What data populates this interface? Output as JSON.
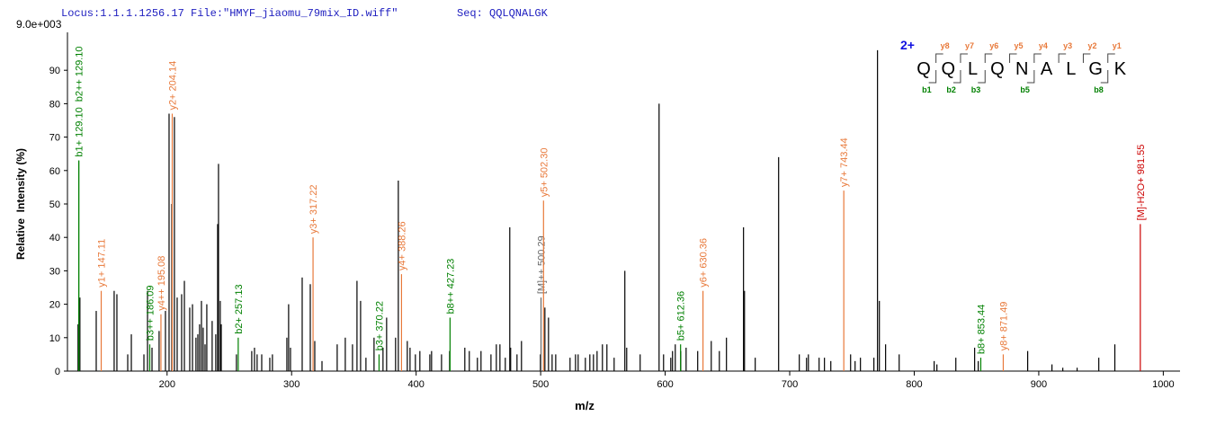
{
  "chart_data": {
    "type": "spectrum",
    "header": "Locus:1.1.1.1256.17 File:\"HMYF_jiaomu_79mix_ID.wiff\"",
    "seq_label": "Seq: QQLQNALGK",
    "scale_label": "9.0e+003",
    "x_label": "m/z",
    "y_label": "Relative  Intensity (%)",
    "xlim": [
      120,
      1012
    ],
    "ylim": [
      0,
      100
    ],
    "xticks": [
      200,
      300,
      400,
      500,
      600,
      700,
      800,
      900,
      1000
    ],
    "yticks": [
      0,
      10,
      20,
      30,
      40,
      50,
      60,
      70,
      80,
      90
    ],
    "series": [
      {
        "name": "peaks",
        "color": "#000000",
        "x": [
          143.1,
          157.5,
          159.7,
          168.4,
          171.3,
          181.4,
          184.3,
          187.9,
          193.6,
          198.7,
          201.6,
          203.8,
          205.9,
          208.1,
          211.7,
          213.9,
          218.2,
          220.4,
          223.2,
          224.7,
          226.1,
          227.6,
          229,
          230.5,
          231.9,
          236.2,
          239.1,
          240.6,
          241.3,
          242.7,
          243.5,
          255.7,
          268,
          270.2,
          272.3,
          276,
          282.5,
          284.6,
          296.2,
          297.6,
          299.1,
          308.5,
          315,
          318.6,
          324.4,
          336.6,
          343.1,
          348.9,
          352.5,
          355.4,
          359.7,
          366.2,
          373.4,
          376.3,
          383.5,
          385.7,
          392.9,
          395.1,
          399.4,
          403,
          411,
          412.4,
          420.4,
          426.9,
          439.1,
          442.7,
          449.2,
          452.1,
          460.1,
          464.4,
          467.3,
          471.6,
          475.2,
          475.9,
          481,
          484.6,
          499.8,
          503.4,
          506.3,
          509.2,
          512.1,
          523.6,
          528,
          530.1,
          535.9,
          539.5,
          542.4,
          545.3,
          549.6,
          553.2,
          559,
          567.6,
          569.1,
          579.9,
          595.1,
          598.7,
          604.5,
          605.9,
          608.1,
          612.5,
          616.8,
          626.1,
          637,
          643.5,
          649.2,
          662.9,
          663.7,
          672.3,
          691.1,
          707.7,
          713.5,
          715,
          723.6,
          727.9,
          733,
          748.9,
          752.5,
          756.8,
          767.6,
          770.5,
          772,
          777,
          787.9,
          816,
          818.2,
          833.4,
          848.5,
          851.4,
          891.1,
          910.6,
          919.3,
          930.8,
          948.2,
          961.1,
          128.5,
          130
        ],
        "values": [
          18,
          24,
          23,
          5,
          11,
          5,
          24,
          7,
          12,
          18,
          77,
          50,
          76,
          22,
          23,
          27,
          19,
          20,
          10,
          11,
          14,
          21,
          13,
          8,
          20,
          15,
          11,
          44,
          62,
          21,
          14,
          5,
          6,
          7,
          5,
          5,
          4,
          5,
          10,
          20,
          7,
          28,
          26,
          9,
          3,
          8,
          10,
          8,
          27,
          21,
          4,
          10,
          7,
          16,
          10,
          57,
          9,
          7,
          5,
          6,
          5,
          6,
          5,
          6,
          7,
          6,
          4,
          6,
          5,
          8,
          8,
          4,
          43,
          7,
          5,
          9,
          5,
          19,
          16,
          5,
          5,
          4,
          5,
          5,
          4,
          5,
          5,
          6,
          8,
          8,
          4,
          30,
          7,
          5,
          80,
          5,
          4,
          6,
          8,
          6,
          7,
          6,
          9,
          6,
          10,
          43,
          24,
          4,
          64,
          5,
          4,
          5,
          4,
          4,
          3,
          5,
          3,
          4,
          4,
          96,
          21,
          8,
          5,
          3,
          2,
          4,
          7,
          3,
          6,
          2,
          1,
          1,
          4,
          8,
          14,
          22
        ]
      }
    ],
    "annotations": [
      {
        "x": 129.1,
        "value": 63,
        "label": "b1+ 129.10",
        "color": "#008000"
      },
      {
        "x": 129.1,
        "value": 63,
        "label": "b2++ 129.10",
        "color": "#008000"
      },
      {
        "x": 147.11,
        "value": 24,
        "label": "y1+ 147.11",
        "color": "#e8793a"
      },
      {
        "x": 186.09,
        "value": 8,
        "label": "b3++ 186.09",
        "color": "#008000"
      },
      {
        "x": 195.08,
        "value": 17,
        "label": "y4++ 195.08",
        "color": "#e8793a"
      },
      {
        "x": 204.14,
        "value": 77,
        "label": "y2+ 204.14",
        "color": "#e8793a"
      },
      {
        "x": 257.13,
        "value": 10,
        "label": "b2+ 257.13",
        "color": "#008000"
      },
      {
        "x": 317.22,
        "value": 40,
        "label": "y3+ 317.22",
        "color": "#e8793a"
      },
      {
        "x": 370.22,
        "value": 5,
        "label": "b3+ 370.22",
        "color": "#008000"
      },
      {
        "x": 388.26,
        "value": 29,
        "label": "y4+ 388.26",
        "color": "#e8793a"
      },
      {
        "x": 427.23,
        "value": 16,
        "label": "b8++ 427.23",
        "color": "#008000"
      },
      {
        "x": 500.29,
        "value": 22,
        "label": "[M]++ 500.29",
        "color": "#666666"
      },
      {
        "x": 502.3,
        "value": 51,
        "label": "y5+ 502.30",
        "color": "#e8793a"
      },
      {
        "x": 612.36,
        "value": 8,
        "label": "b5+ 612.36",
        "color": "#008000"
      },
      {
        "x": 630.36,
        "value": 24,
        "label": "y6+ 630.36",
        "color": "#e8793a"
      },
      {
        "x": 743.44,
        "value": 54,
        "label": "y7+ 743.44",
        "color": "#e8793a"
      },
      {
        "x": 853.44,
        "value": 4,
        "label": "b8+ 853.44",
        "color": "#008000"
      },
      {
        "x": 871.49,
        "value": 5,
        "label": "y8+ 871.49",
        "color": "#e8793a"
      },
      {
        "x": 981.55,
        "value": 44,
        "label": "[M]-H2O+ 981.55",
        "color": "#cc0000"
      }
    ],
    "fragment_map": {
      "charge": "2+",
      "sequence": [
        "Q",
        "Q",
        "L",
        "Q",
        "N",
        "A",
        "L",
        "G",
        "K"
      ],
      "y_ions": [
        "y8",
        "y7",
        "y6",
        "y5",
        "y4",
        "y3",
        "y2",
        "y1"
      ],
      "b_ions": [
        "b1",
        "b2",
        "b3",
        null,
        "b5",
        null,
        null,
        "b8"
      ]
    }
  }
}
